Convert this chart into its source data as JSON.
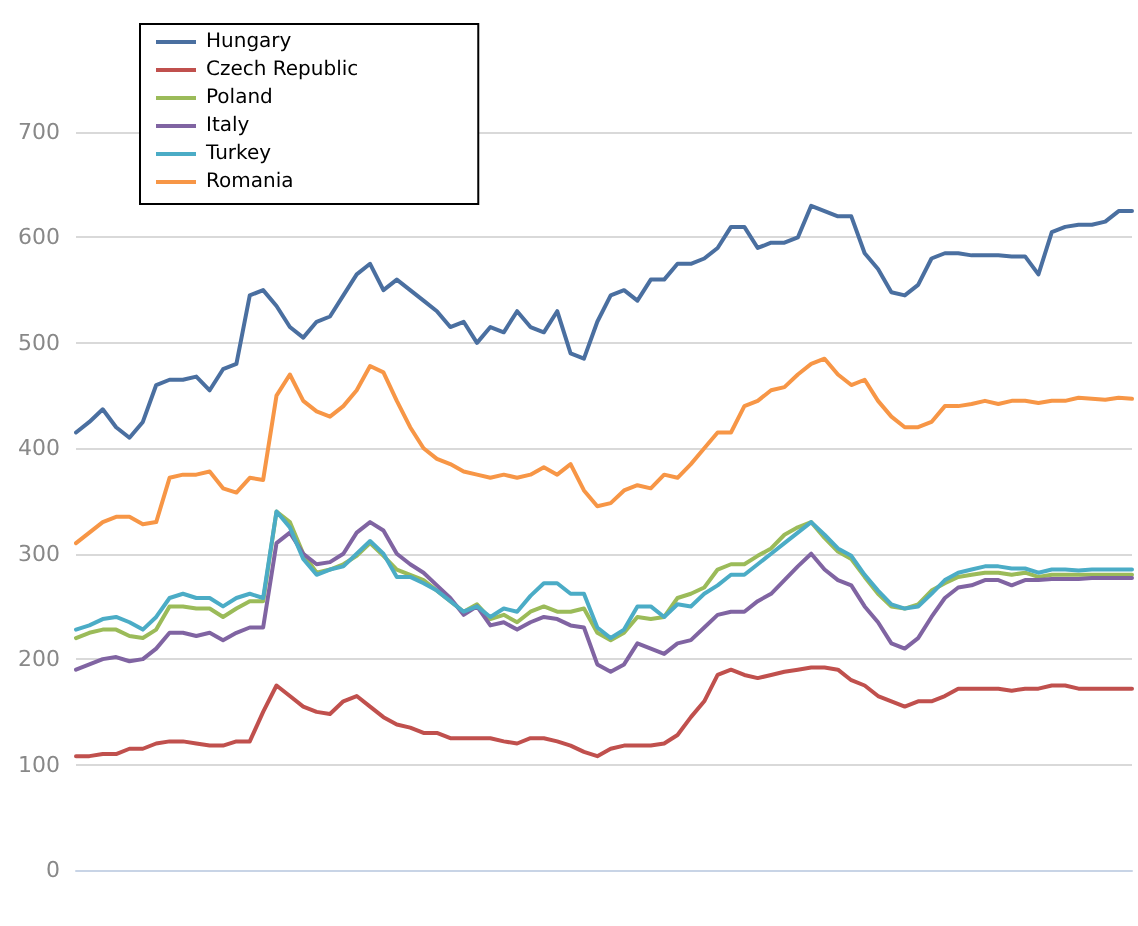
{
  "chart_data": {
    "type": "line",
    "categories": [
      null,
      null,
      null,
      null,
      null,
      null,
      null,
      null,
      null,
      null,
      null,
      null,
      null,
      null,
      null,
      null,
      null,
      null,
      null,
      null,
      null,
      null,
      null,
      null,
      null,
      null,
      null,
      null,
      null,
      null,
      null,
      null,
      null,
      null,
      null,
      null,
      null,
      null,
      null,
      null,
      null,
      null,
      null,
      null,
      null,
      null,
      null,
      null,
      null,
      null,
      null,
      null,
      null,
      null,
      null,
      null,
      null,
      null,
      null,
      null,
      null,
      null,
      null,
      null,
      null,
      null,
      null,
      null,
      null,
      null,
      null,
      null,
      null,
      null,
      null,
      null,
      null,
      null,
      null,
      null
    ],
    "series": [
      {
        "name": "Hungary",
        "color": "#4a6fa0",
        "values": [
          415,
          425,
          437,
          420,
          410,
          425,
          460,
          465,
          465,
          468,
          455,
          475,
          480,
          545,
          550,
          535,
          515,
          505,
          520,
          525,
          545,
          565,
          575,
          550,
          560,
          550,
          540,
          530,
          515,
          520,
          500,
          515,
          510,
          530,
          515,
          510,
          530,
          490,
          485,
          520,
          545,
          550,
          540,
          560,
          560,
          575,
          575,
          580,
          590,
          610,
          610,
          590,
          595,
          595,
          600,
          630,
          625,
          620,
          620,
          585,
          570,
          548,
          545,
          555,
          580,
          585,
          585,
          583,
          583,
          583,
          582,
          582,
          565,
          605,
          610,
          612,
          612,
          615,
          625,
          625
        ]
      },
      {
        "name": "Czech Republic",
        "color": "#c0504d",
        "values": [
          108,
          108,
          110,
          110,
          115,
          115,
          120,
          122,
          122,
          120,
          118,
          118,
          122,
          122,
          150,
          175,
          165,
          155,
          150,
          148,
          160,
          165,
          155,
          145,
          138,
          135,
          130,
          130,
          125,
          125,
          125,
          125,
          122,
          120,
          125,
          125,
          122,
          118,
          112,
          108,
          115,
          118,
          118,
          118,
          120,
          128,
          145,
          160,
          185,
          190,
          185,
          182,
          185,
          188,
          190,
          192,
          192,
          190,
          180,
          175,
          165,
          160,
          155,
          160,
          160,
          165,
          172,
          172,
          172,
          172,
          170,
          172,
          172,
          175,
          175,
          172,
          172,
          172,
          172,
          172
        ]
      },
      {
        "name": "Poland",
        "color": "#9bbb59",
        "values": [
          220,
          225,
          228,
          228,
          222,
          220,
          228,
          250,
          250,
          248,
          248,
          240,
          248,
          255,
          255,
          340,
          330,
          300,
          282,
          285,
          290,
          298,
          310,
          298,
          285,
          280,
          275,
          265,
          255,
          245,
          252,
          238,
          242,
          235,
          245,
          250,
          245,
          245,
          248,
          225,
          218,
          225,
          240,
          238,
          240,
          258,
          262,
          268,
          285,
          290,
          290,
          298,
          305,
          318,
          325,
          330,
          315,
          302,
          295,
          278,
          262,
          250,
          248,
          252,
          265,
          272,
          278,
          280,
          282,
          282,
          280,
          282,
          278,
          280,
          280,
          280,
          280,
          280,
          280,
          280
        ]
      },
      {
        "name": "Italy",
        "color": "#8064a2",
        "values": [
          190,
          195,
          200,
          202,
          198,
          200,
          210,
          225,
          225,
          222,
          225,
          218,
          225,
          230,
          230,
          310,
          320,
          300,
          290,
          292,
          300,
          320,
          330,
          322,
          300,
          290,
          282,
          270,
          258,
          242,
          250,
          232,
          235,
          228,
          235,
          240,
          238,
          232,
          230,
          195,
          188,
          195,
          215,
          210,
          205,
          215,
          218,
          230,
          242,
          245,
          245,
          255,
          262,
          275,
          288,
          300,
          285,
          275,
          270,
          250,
          235,
          215,
          210,
          220,
          240,
          258,
          268,
          270,
          275,
          275,
          270,
          275,
          275,
          276,
          276,
          276,
          277,
          277,
          277,
          277
        ]
      },
      {
        "name": "Turkey",
        "color": "#4bacc6",
        "values": [
          228,
          232,
          238,
          240,
          235,
          228,
          240,
          258,
          262,
          258,
          258,
          250,
          258,
          262,
          258,
          340,
          325,
          295,
          280,
          285,
          288,
          300,
          312,
          300,
          278,
          278,
          272,
          265,
          255,
          245,
          250,
          240,
          248,
          245,
          260,
          272,
          272,
          262,
          262,
          230,
          220,
          228,
          250,
          250,
          240,
          252,
          250,
          262,
          270,
          280,
          280,
          290,
          300,
          310,
          320,
          330,
          318,
          305,
          298,
          280,
          265,
          252,
          248,
          250,
          262,
          275,
          282,
          285,
          288,
          288,
          286,
          286,
          282,
          285,
          285,
          284,
          285,
          285,
          285,
          285
        ]
      },
      {
        "name": "Romania",
        "color": "#f79646",
        "values": [
          310,
          320,
          330,
          335,
          335,
          328,
          330,
          372,
          375,
          375,
          378,
          362,
          358,
          372,
          370,
          450,
          470,
          445,
          435,
          430,
          440,
          455,
          478,
          472,
          445,
          420,
          400,
          390,
          385,
          378,
          375,
          372,
          375,
          372,
          375,
          382,
          375,
          385,
          360,
          345,
          348,
          360,
          365,
          362,
          375,
          372,
          385,
          400,
          415,
          415,
          440,
          445,
          455,
          458,
          470,
          480,
          485,
          470,
          460,
          465,
          445,
          430,
          420,
          420,
          425,
          440,
          440,
          442,
          445,
          442,
          445,
          445,
          443,
          445,
          445,
          448,
          447,
          446,
          448,
          447
        ]
      }
    ],
    "ylim": [
      0,
      700
    ],
    "yticks": [
      0,
      100,
      200,
      300,
      400,
      500,
      600,
      700
    ],
    "grid": "y",
    "legend": "top left",
    "marker": "none",
    "line_style": "solid"
  }
}
